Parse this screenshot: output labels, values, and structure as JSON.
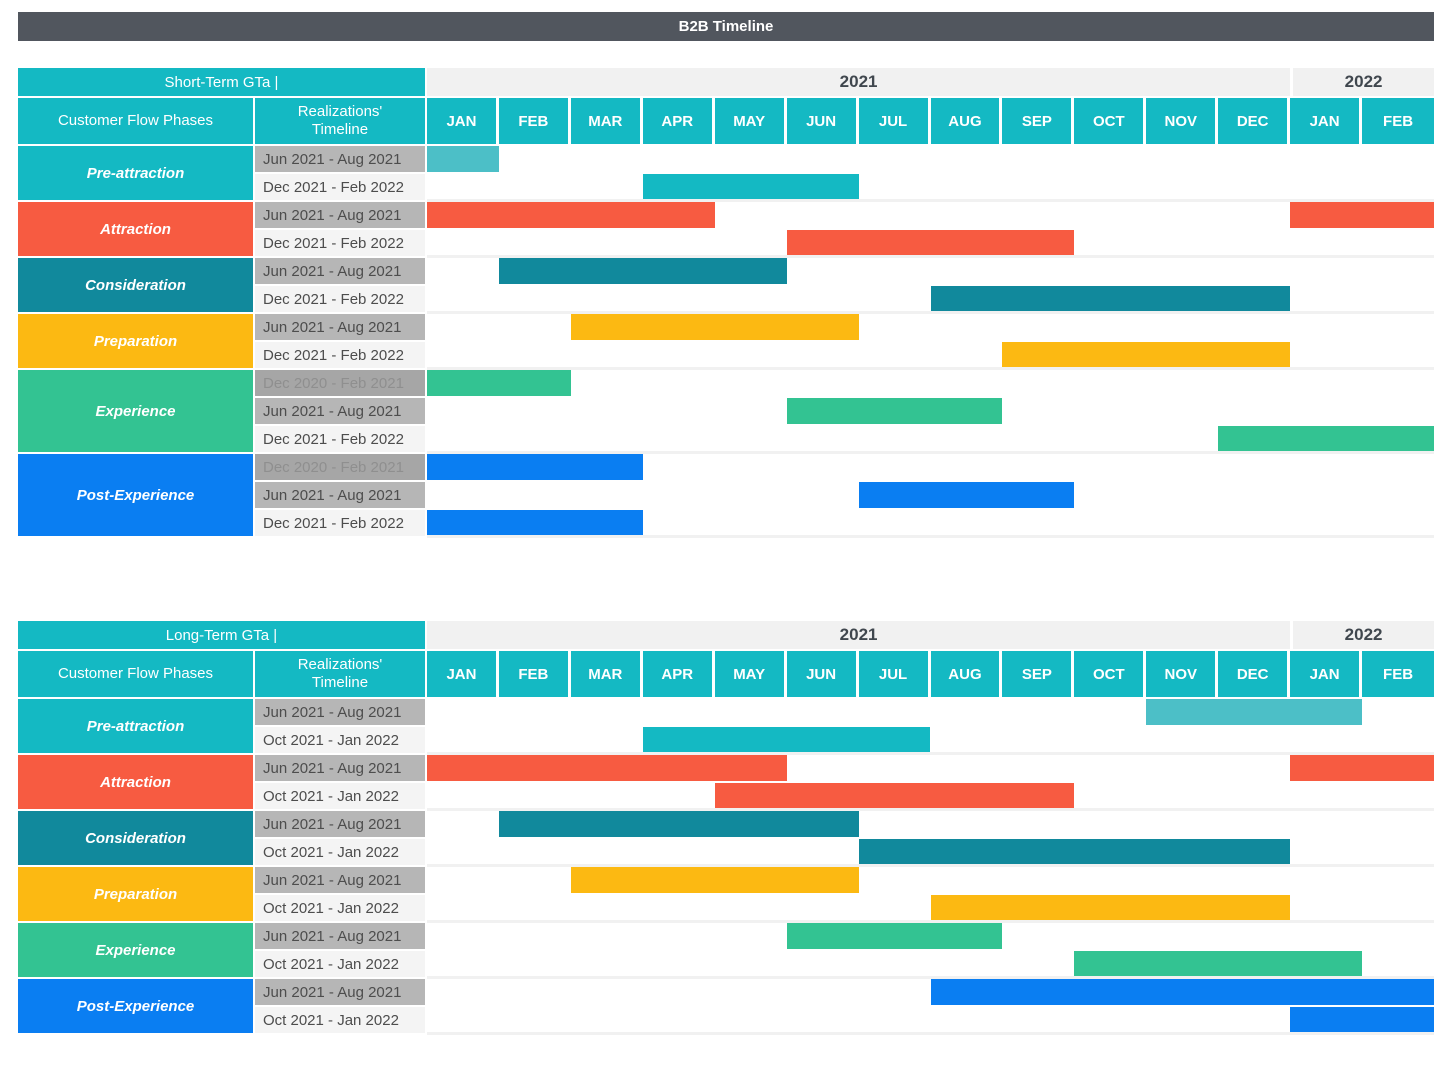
{
  "chart_data": {
    "type": "gantt",
    "title": "B2B Timeline",
    "columns": {
      "phases": "Customer Flow Phases",
      "timeline": "Realizations' Timeline"
    },
    "years": [
      {
        "label": "2021",
        "months": 12
      },
      {
        "label": "2022",
        "months": 2
      }
    ],
    "months": [
      "JAN",
      "FEB",
      "MAR",
      "APR",
      "MAY",
      "JUN",
      "JUL",
      "AUG",
      "SEP",
      "OCT",
      "NOV",
      "DEC",
      "JAN",
      "FEB"
    ],
    "palette": {
      "teal": "#14b9c3",
      "teal_light": "#4cbfc7",
      "red": "#f75b41",
      "dark_teal": "#11899c",
      "yellow": "#fcb912",
      "green": "#33c392",
      "blue": "#0a7ef2",
      "header_bar": "#51565e",
      "year_bg": "#f1f1f1"
    },
    "sections": [
      {
        "title": "Short-Term GTa |",
        "phases": [
          {
            "name": "Pre-attraction",
            "color": "teal",
            "rows": [
              {
                "label": "Jun 2021 - Aug 2021",
                "shade": "gray",
                "bars": [
                  {
                    "from": "Jan 2021",
                    "to": "Jan 2021",
                    "start": 0,
                    "end": 0,
                    "color": "teal_light"
                  }
                ]
              },
              {
                "label": "Dec 2021 - Feb 2022",
                "shade": "light",
                "bars": [
                  {
                    "from": "Apr 2021",
                    "to": "Jun 2021",
                    "start": 3,
                    "end": 5,
                    "color": "teal"
                  }
                ]
              }
            ]
          },
          {
            "name": "Attraction",
            "color": "red",
            "rows": [
              {
                "label": "Jun 2021 - Aug 2021",
                "shade": "gray",
                "bars": [
                  {
                    "from": "Jan 2021",
                    "to": "Apr 2021",
                    "start": 0,
                    "end": 3,
                    "color": "red"
                  },
                  {
                    "from": "Jan 2022",
                    "to": "Feb 2022",
                    "start": 12,
                    "end": 13,
                    "color": "red"
                  }
                ]
              },
              {
                "label": "Dec 2021 - Feb 2022",
                "shade": "light",
                "bars": [
                  {
                    "from": "Jun 2021",
                    "to": "Sep 2021",
                    "start": 5,
                    "end": 8,
                    "color": "red"
                  }
                ]
              }
            ]
          },
          {
            "name": "Consideration",
            "color": "dark_teal",
            "rows": [
              {
                "label": "Jun 2021 - Aug 2021",
                "shade": "gray",
                "bars": [
                  {
                    "from": "Feb 2021",
                    "to": "May 2021",
                    "start": 1,
                    "end": 4,
                    "color": "dark_teal"
                  }
                ]
              },
              {
                "label": "Dec 2021 - Feb 2022",
                "shade": "light",
                "bars": [
                  {
                    "from": "Aug 2021",
                    "to": "Dec 2021",
                    "start": 7,
                    "end": 11,
                    "color": "dark_teal"
                  }
                ]
              }
            ]
          },
          {
            "name": "Preparation",
            "color": "yellow",
            "rows": [
              {
                "label": "Jun 2021 - Aug 2021",
                "shade": "gray",
                "bars": [
                  {
                    "from": "Mar 2021",
                    "to": "Jun 2021",
                    "start": 2,
                    "end": 5,
                    "color": "yellow"
                  }
                ]
              },
              {
                "label": "Dec 2021 - Feb 2022",
                "shade": "light",
                "bars": [
                  {
                    "from": "Sep 2021",
                    "to": "Dec 2021",
                    "start": 8,
                    "end": 11,
                    "color": "yellow"
                  }
                ]
              }
            ]
          },
          {
            "name": "Experience",
            "color": "green",
            "rows": [
              {
                "label": "Dec 2020 - Feb 2021",
                "shade": "past",
                "bars": [
                  {
                    "from": "Jan 2021",
                    "to": "Feb 2021",
                    "start": 0,
                    "end": 1,
                    "color": "green"
                  }
                ]
              },
              {
                "label": "Jun 2021 - Aug 2021",
                "shade": "gray",
                "bars": [
                  {
                    "from": "Jun 2021",
                    "to": "Aug 2021",
                    "start": 5,
                    "end": 7,
                    "color": "green"
                  }
                ]
              },
              {
                "label": "Dec 2021 - Feb 2022",
                "shade": "light",
                "bars": [
                  {
                    "from": "Dec 2021",
                    "to": "Feb 2022",
                    "start": 11,
                    "end": 13,
                    "color": "green"
                  }
                ]
              }
            ]
          },
          {
            "name": "Post-Experience",
            "color": "blue",
            "rows": [
              {
                "label": "Dec 2020 - Feb 2021",
                "shade": "past",
                "bars": [
                  {
                    "from": "Jan 2021",
                    "to": "Mar 2021",
                    "start": 0,
                    "end": 2,
                    "color": "blue"
                  }
                ]
              },
              {
                "label": "Jun 2021 - Aug 2021",
                "shade": "gray",
                "bars": [
                  {
                    "from": "Jul 2021",
                    "to": "Sep 2021",
                    "start": 6,
                    "end": 8,
                    "color": "blue"
                  }
                ]
              },
              {
                "label": "Dec 2021 - Feb 2022",
                "shade": "light",
                "bars": [
                  {
                    "from": "Jan 2021",
                    "to": "Mar 2021",
                    "start": 0,
                    "end": 2,
                    "color": "blue"
                  }
                ]
              }
            ]
          }
        ]
      },
      {
        "title": "Long-Term GTa |",
        "phases": [
          {
            "name": "Pre-attraction",
            "color": "teal",
            "rows": [
              {
                "label": "Jun 2021 - Aug 2021",
                "shade": "gray",
                "bars": [
                  {
                    "from": "Nov 2021",
                    "to": "Jan 2022",
                    "start": 10,
                    "end": 12,
                    "color": "teal_light"
                  }
                ]
              },
              {
                "label": "Oct 2021 - Jan 2022",
                "shade": "light",
                "bars": [
                  {
                    "from": "Apr 2021",
                    "to": "Jul 2021",
                    "start": 3,
                    "end": 6,
                    "color": "teal"
                  }
                ]
              }
            ]
          },
          {
            "name": "Attraction",
            "color": "red",
            "rows": [
              {
                "label": "Jun 2021 - Aug 2021",
                "shade": "gray",
                "bars": [
                  {
                    "from": "Jan 2021",
                    "to": "May 2021",
                    "start": 0,
                    "end": 4,
                    "color": "red"
                  },
                  {
                    "from": "Jan 2022",
                    "to": "Feb 2022",
                    "start": 12,
                    "end": 13,
                    "color": "red"
                  }
                ]
              },
              {
                "label": "Oct 2021 - Jan 2022",
                "shade": "light",
                "bars": [
                  {
                    "from": "May 2021",
                    "to": "Sep 2021",
                    "start": 4,
                    "end": 8,
                    "color": "red"
                  }
                ]
              }
            ]
          },
          {
            "name": "Consideration",
            "color": "dark_teal",
            "rows": [
              {
                "label": "Jun 2021 - Aug 2021",
                "shade": "gray",
                "bars": [
                  {
                    "from": "Feb 2021",
                    "to": "Jun 2021",
                    "start": 1,
                    "end": 5,
                    "color": "dark_teal"
                  }
                ]
              },
              {
                "label": "Oct 2021 - Jan 2022",
                "shade": "light",
                "bars": [
                  {
                    "from": "Jul 2021",
                    "to": "Dec 2021",
                    "start": 6,
                    "end": 11,
                    "color": "dark_teal"
                  }
                ]
              }
            ]
          },
          {
            "name": "Preparation",
            "color": "yellow",
            "rows": [
              {
                "label": "Jun 2021 - Aug 2021",
                "shade": "gray",
                "bars": [
                  {
                    "from": "Mar 2021",
                    "to": "Jun 2021",
                    "start": 2,
                    "end": 5,
                    "color": "yellow"
                  }
                ]
              },
              {
                "label": "Oct 2021 - Jan 2022",
                "shade": "light",
                "bars": [
                  {
                    "from": "Aug 2021",
                    "to": "Dec 2021",
                    "start": 7,
                    "end": 11,
                    "color": "yellow"
                  }
                ]
              }
            ]
          },
          {
            "name": "Experience",
            "color": "green",
            "rows": [
              {
                "label": "Jun 2021 - Aug 2021",
                "shade": "gray",
                "bars": [
                  {
                    "from": "Jun 2021",
                    "to": "Aug 2021",
                    "start": 5,
                    "end": 7,
                    "color": "green"
                  }
                ]
              },
              {
                "label": "Oct 2021 - Jan 2022",
                "shade": "light",
                "bars": [
                  {
                    "from": "Oct 2021",
                    "to": "Jan 2022",
                    "start": 9,
                    "end": 12,
                    "color": "green"
                  }
                ]
              }
            ]
          },
          {
            "name": "Post-Experience",
            "color": "blue",
            "rows": [
              {
                "label": "Jun 2021 - Aug 2021",
                "shade": "gray",
                "bars": [
                  {
                    "from": "Aug 2021",
                    "to": "Feb 2022",
                    "start": 7,
                    "end": 13,
                    "color": "blue"
                  }
                ]
              },
              {
                "label": "Oct 2021 - Jan 2022",
                "shade": "light",
                "bars": [
                  {
                    "from": "Jan 2022",
                    "to": "Feb 2022",
                    "start": 12,
                    "end": 13,
                    "color": "blue"
                  }
                ]
              }
            ]
          }
        ]
      }
    ]
  }
}
